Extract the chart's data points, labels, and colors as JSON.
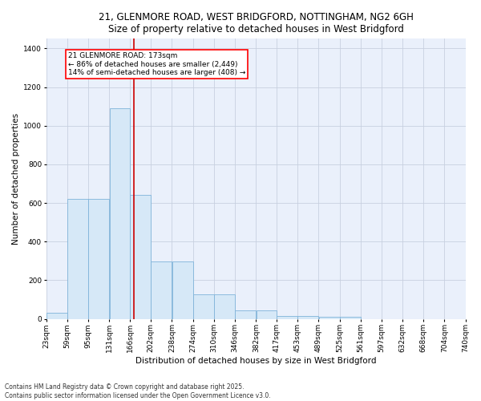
{
  "title_line1": "21, GLENMORE ROAD, WEST BRIDGFORD, NOTTINGHAM, NG2 6GH",
  "title_line2": "Size of property relative to detached houses in West Bridgford",
  "xlabel": "Distribution of detached houses by size in West Bridgford",
  "ylabel": "Number of detached properties",
  "bar_color": "#d6e8f7",
  "bar_edge_color": "#7fb3d9",
  "grid_color": "#c8d0e0",
  "bg_color": "#eaf0fb",
  "annotation_text": "21 GLENMORE ROAD: 173sqm\n← 86% of detached houses are smaller (2,449)\n14% of semi-detached houses are larger (408) →",
  "vline_color": "#cc0000",
  "vline_x": 173,
  "bin_edges": [
    23,
    59,
    95,
    131,
    166,
    202,
    238,
    274,
    310,
    346,
    382,
    417,
    453,
    489,
    525,
    561,
    597,
    632,
    668,
    704,
    740
  ],
  "bin_labels": [
    "23sqm",
    "59sqm",
    "95sqm",
    "131sqm",
    "166sqm",
    "202sqm",
    "238sqm",
    "274sqm",
    "310sqm",
    "346sqm",
    "382sqm",
    "417sqm",
    "453sqm",
    "489sqm",
    "525sqm",
    "561sqm",
    "597sqm",
    "632sqm",
    "668sqm",
    "704sqm",
    "740sqm"
  ],
  "bar_heights": [
    30,
    620,
    620,
    1090,
    640,
    295,
    295,
    125,
    125,
    45,
    45,
    15,
    15,
    10,
    10,
    0,
    0,
    0,
    0,
    0
  ],
  "ylim": [
    0,
    1450
  ],
  "yticks": [
    0,
    200,
    400,
    600,
    800,
    1000,
    1200,
    1400
  ],
  "footer": "Contains HM Land Registry data © Crown copyright and database right 2025.\nContains public sector information licensed under the Open Government Licence v3.0.",
  "title_fontsize": 8.5,
  "subtitle_fontsize": 8,
  "axis_label_fontsize": 7.5,
  "tick_fontsize": 6.5,
  "footer_fontsize": 5.5,
  "annotation_fontsize": 6.5
}
